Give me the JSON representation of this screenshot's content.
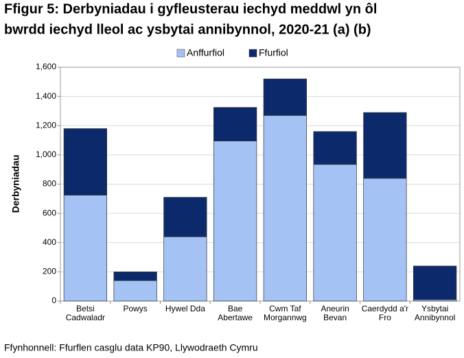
{
  "chart_data": {
    "type": "stacked_bar",
    "title": [
      "Ffigur 5: Derbyniadau i gyfleusterau iechyd meddwl yn ôl",
      "bwrdd iechyd lleol ac ysbytai annibynnol, 2020-21 (a) (b)"
    ],
    "ylabel": "Derbyniadau",
    "source": "Ffynhonnell: Ffurflen casglu data KP90, Llywodraeth Cymru",
    "categories": [
      [
        "Betsi",
        "Cadwaladr"
      ],
      [
        "Powys"
      ],
      [
        "Hywel Dda"
      ],
      [
        "Bae",
        "Abertawe"
      ],
      [
        "Cwm Taf",
        "Morgannwg"
      ],
      [
        "Aneurin",
        "Bevan"
      ],
      [
        "Caerdydd a'r",
        "Fro"
      ],
      [
        "Ysbytai",
        "Annibynnol"
      ]
    ],
    "series": [
      {
        "name": "Anffurfiol",
        "color": "#a4c2f4",
        "values": [
          725,
          140,
          440,
          1095,
          1270,
          935,
          840,
          10
        ]
      },
      {
        "name": "Ffurfiol",
        "color": "#0c2a6b",
        "values": [
          455,
          60,
          270,
          230,
          250,
          225,
          450,
          230
        ]
      }
    ],
    "ylim": [
      0,
      1600
    ],
    "yticks": [
      0,
      200,
      400,
      600,
      800,
      {
        "value": 1000,
        "label": "1,000"
      },
      {
        "value": 1200,
        "label": "1,200"
      },
      {
        "value": 1400,
        "label": "1,400"
      },
      {
        "value": 1600,
        "label": "1,600"
      }
    ],
    "grid": true,
    "legend": "top"
  }
}
